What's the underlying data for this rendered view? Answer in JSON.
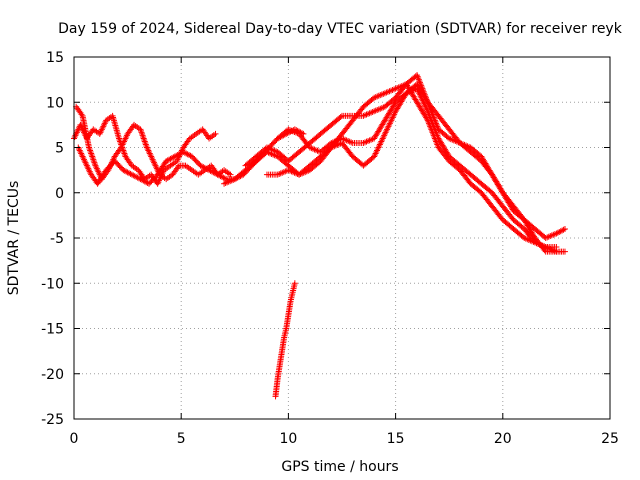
{
  "chart_data": {
    "type": "scatter",
    "title": "Day 159 of 2024, Sidereal Day-to-day VTEC variation (SDTVAR) for receiver reyk",
    "xlabel": "GPS time / hours",
    "ylabel": "SDTVAR / TECUs",
    "xlim": [
      0,
      25
    ],
    "ylim": [
      -25,
      15
    ],
    "xticks": [
      0,
      5,
      10,
      15,
      20,
      25
    ],
    "yticks": [
      -25,
      -20,
      -15,
      -10,
      -5,
      0,
      5,
      10,
      15
    ],
    "grid": true,
    "marker": "+",
    "color": "#ff0000",
    "series": [
      {
        "name": "track-a",
        "x": [
          0,
          0.3,
          0.6,
          0.9,
          1.2,
          1.5,
          1.8,
          2.1,
          2.4,
          2.7,
          3.0,
          3.3,
          3.6,
          3.9,
          4.2,
          4.5,
          4.8,
          5.1,
          5.4,
          5.7,
          6.0,
          6.3,
          6.6
        ],
        "y": [
          6,
          7.5,
          6,
          7,
          6.5,
          8,
          8.5,
          6,
          4,
          3,
          2.5,
          1.5,
          2,
          1,
          2.5,
          3,
          3.5,
          5,
          6,
          6.5,
          7,
          6,
          6.5
        ]
      },
      {
        "name": "track-b",
        "x": [
          0.1,
          0.4,
          0.7,
          1.0,
          1.3,
          1.6,
          1.9,
          2.2,
          2.5,
          2.8,
          3.1,
          3.4,
          3.7,
          4.0,
          4.3,
          4.6,
          4.9,
          5.2,
          5.5,
          5.8,
          6.1,
          6.4,
          6.7,
          7.0,
          7.3
        ],
        "y": [
          9.5,
          8.5,
          5,
          3,
          1.5,
          2.5,
          4,
          5,
          6.5,
          7.5,
          7,
          5,
          3.5,
          2,
          1.5,
          2,
          3,
          3,
          2.5,
          2,
          2.5,
          3,
          2,
          2.5,
          2
        ]
      },
      {
        "name": "track-c",
        "x": [
          0.2,
          0.5,
          0.8,
          1.1,
          1.5,
          1.9,
          2.3,
          2.7,
          3.1,
          3.5,
          3.9,
          4.3,
          4.7,
          5.1,
          5.5,
          5.9,
          6.3,
          6.7,
          7.1,
          7.5,
          7.9,
          8.3,
          8.7,
          9.1,
          9.5,
          9.9,
          10.3,
          10.7
        ],
        "y": [
          5,
          3.5,
          2,
          1,
          2.5,
          3.5,
          2.5,
          2,
          1.5,
          1,
          2,
          3.5,
          4,
          4.5,
          4,
          3,
          2.5,
          2,
          1.5,
          1.5,
          2,
          3,
          4,
          5,
          6,
          6.5,
          7,
          6.5
        ]
      },
      {
        "name": "track-d",
        "x": [
          7.0,
          7.5,
          8.0,
          8.5,
          9.0,
          9.5,
          10.0,
          10.5,
          11.0,
          11.5,
          12.0,
          12.5,
          13.0,
          13.5,
          14.0,
          14.5,
          15.0,
          15.5,
          16.0,
          16.5,
          17.0,
          17.5,
          18.0,
          18.5,
          19.0,
          19.5,
          20.0,
          20.5,
          21.0,
          21.5,
          22.0,
          22.5,
          22.9
        ],
        "y": [
          1,
          1.5,
          2.5,
          3.5,
          4.5,
          4,
          3,
          2,
          2.5,
          3.5,
          5,
          6.5,
          8,
          9.5,
          10.5,
          11,
          11.5,
          12,
          10,
          8,
          5,
          3.5,
          2.5,
          1,
          0,
          -1.5,
          -3,
          -4,
          -5,
          -5.5,
          -6,
          -6.5,
          -6.5
        ]
      },
      {
        "name": "track-e",
        "x": [
          8.0,
          8.5,
          9.0,
          9.5,
          10.0,
          10.5,
          11.0,
          11.5,
          12.0,
          12.5,
          13.0,
          13.5,
          14.0,
          14.5,
          15.0,
          15.5,
          16.0,
          16.5,
          17.0,
          17.5,
          18.0,
          18.5,
          19.0,
          19.5,
          20.0,
          20.5,
          21.0,
          21.5,
          22.0,
          22.5,
          22.9
        ],
        "y": [
          3,
          4,
          5,
          4.5,
          3.5,
          4.5,
          5.5,
          6.5,
          7.5,
          8.5,
          8.5,
          8.5,
          9,
          9.5,
          10.5,
          12,
          13,
          10,
          7,
          6,
          5.5,
          5,
          4,
          2,
          0,
          -2,
          -3,
          -4,
          -5,
          -4.5,
          -4
        ]
      },
      {
        "name": "track-f",
        "x": [
          9.0,
          9.5,
          10.0,
          10.5,
          11.0,
          11.5,
          12.0,
          12.5,
          13.0,
          13.5,
          14.0,
          14.5,
          15.0,
          15.5,
          16.0,
          16.5,
          17.0,
          17.5,
          18.0,
          18.5,
          19.0,
          19.5,
          20.0,
          20.5,
          21.0,
          21.5,
          22.0,
          22.5
        ],
        "y": [
          2,
          2,
          2.5,
          2,
          3,
          4,
          5,
          5.5,
          4,
          3,
          4,
          6.5,
          9,
          11,
          12,
          10,
          8.5,
          7,
          5.5,
          4.5,
          3.5,
          2,
          0,
          -1.5,
          -3,
          -5,
          -6.5,
          -6.5
        ]
      },
      {
        "name": "track-g",
        "x": [
          9.5,
          10.0,
          10.5,
          11.0,
          11.5,
          12.0,
          12.5,
          13.0,
          13.5,
          14.0,
          14.5,
          15.0,
          15.5,
          16.0,
          16.5,
          17.0,
          17.5,
          18.0,
          18.5,
          19.0,
          19.5,
          20.0,
          20.5,
          21.0,
          21.5,
          22.0,
          22.5
        ],
        "y": [
          6,
          7,
          6.5,
          5,
          4.5,
          5.5,
          6,
          5.5,
          5.5,
          6,
          8,
          10,
          11,
          11.5,
          9,
          6,
          4,
          3,
          2,
          1,
          0,
          -1.5,
          -3,
          -4,
          -5.5,
          -6,
          -6
        ]
      },
      {
        "name": "track-h",
        "x": [
          9.4,
          9.5,
          9.6,
          9.7,
          9.8,
          9.9,
          10.0,
          10.1,
          10.2,
          10.3
        ],
        "y": [
          -22.5,
          -20.5,
          -19,
          -17.5,
          -16,
          -15,
          -13.5,
          -12,
          -11,
          -10
        ]
      }
    ]
  }
}
